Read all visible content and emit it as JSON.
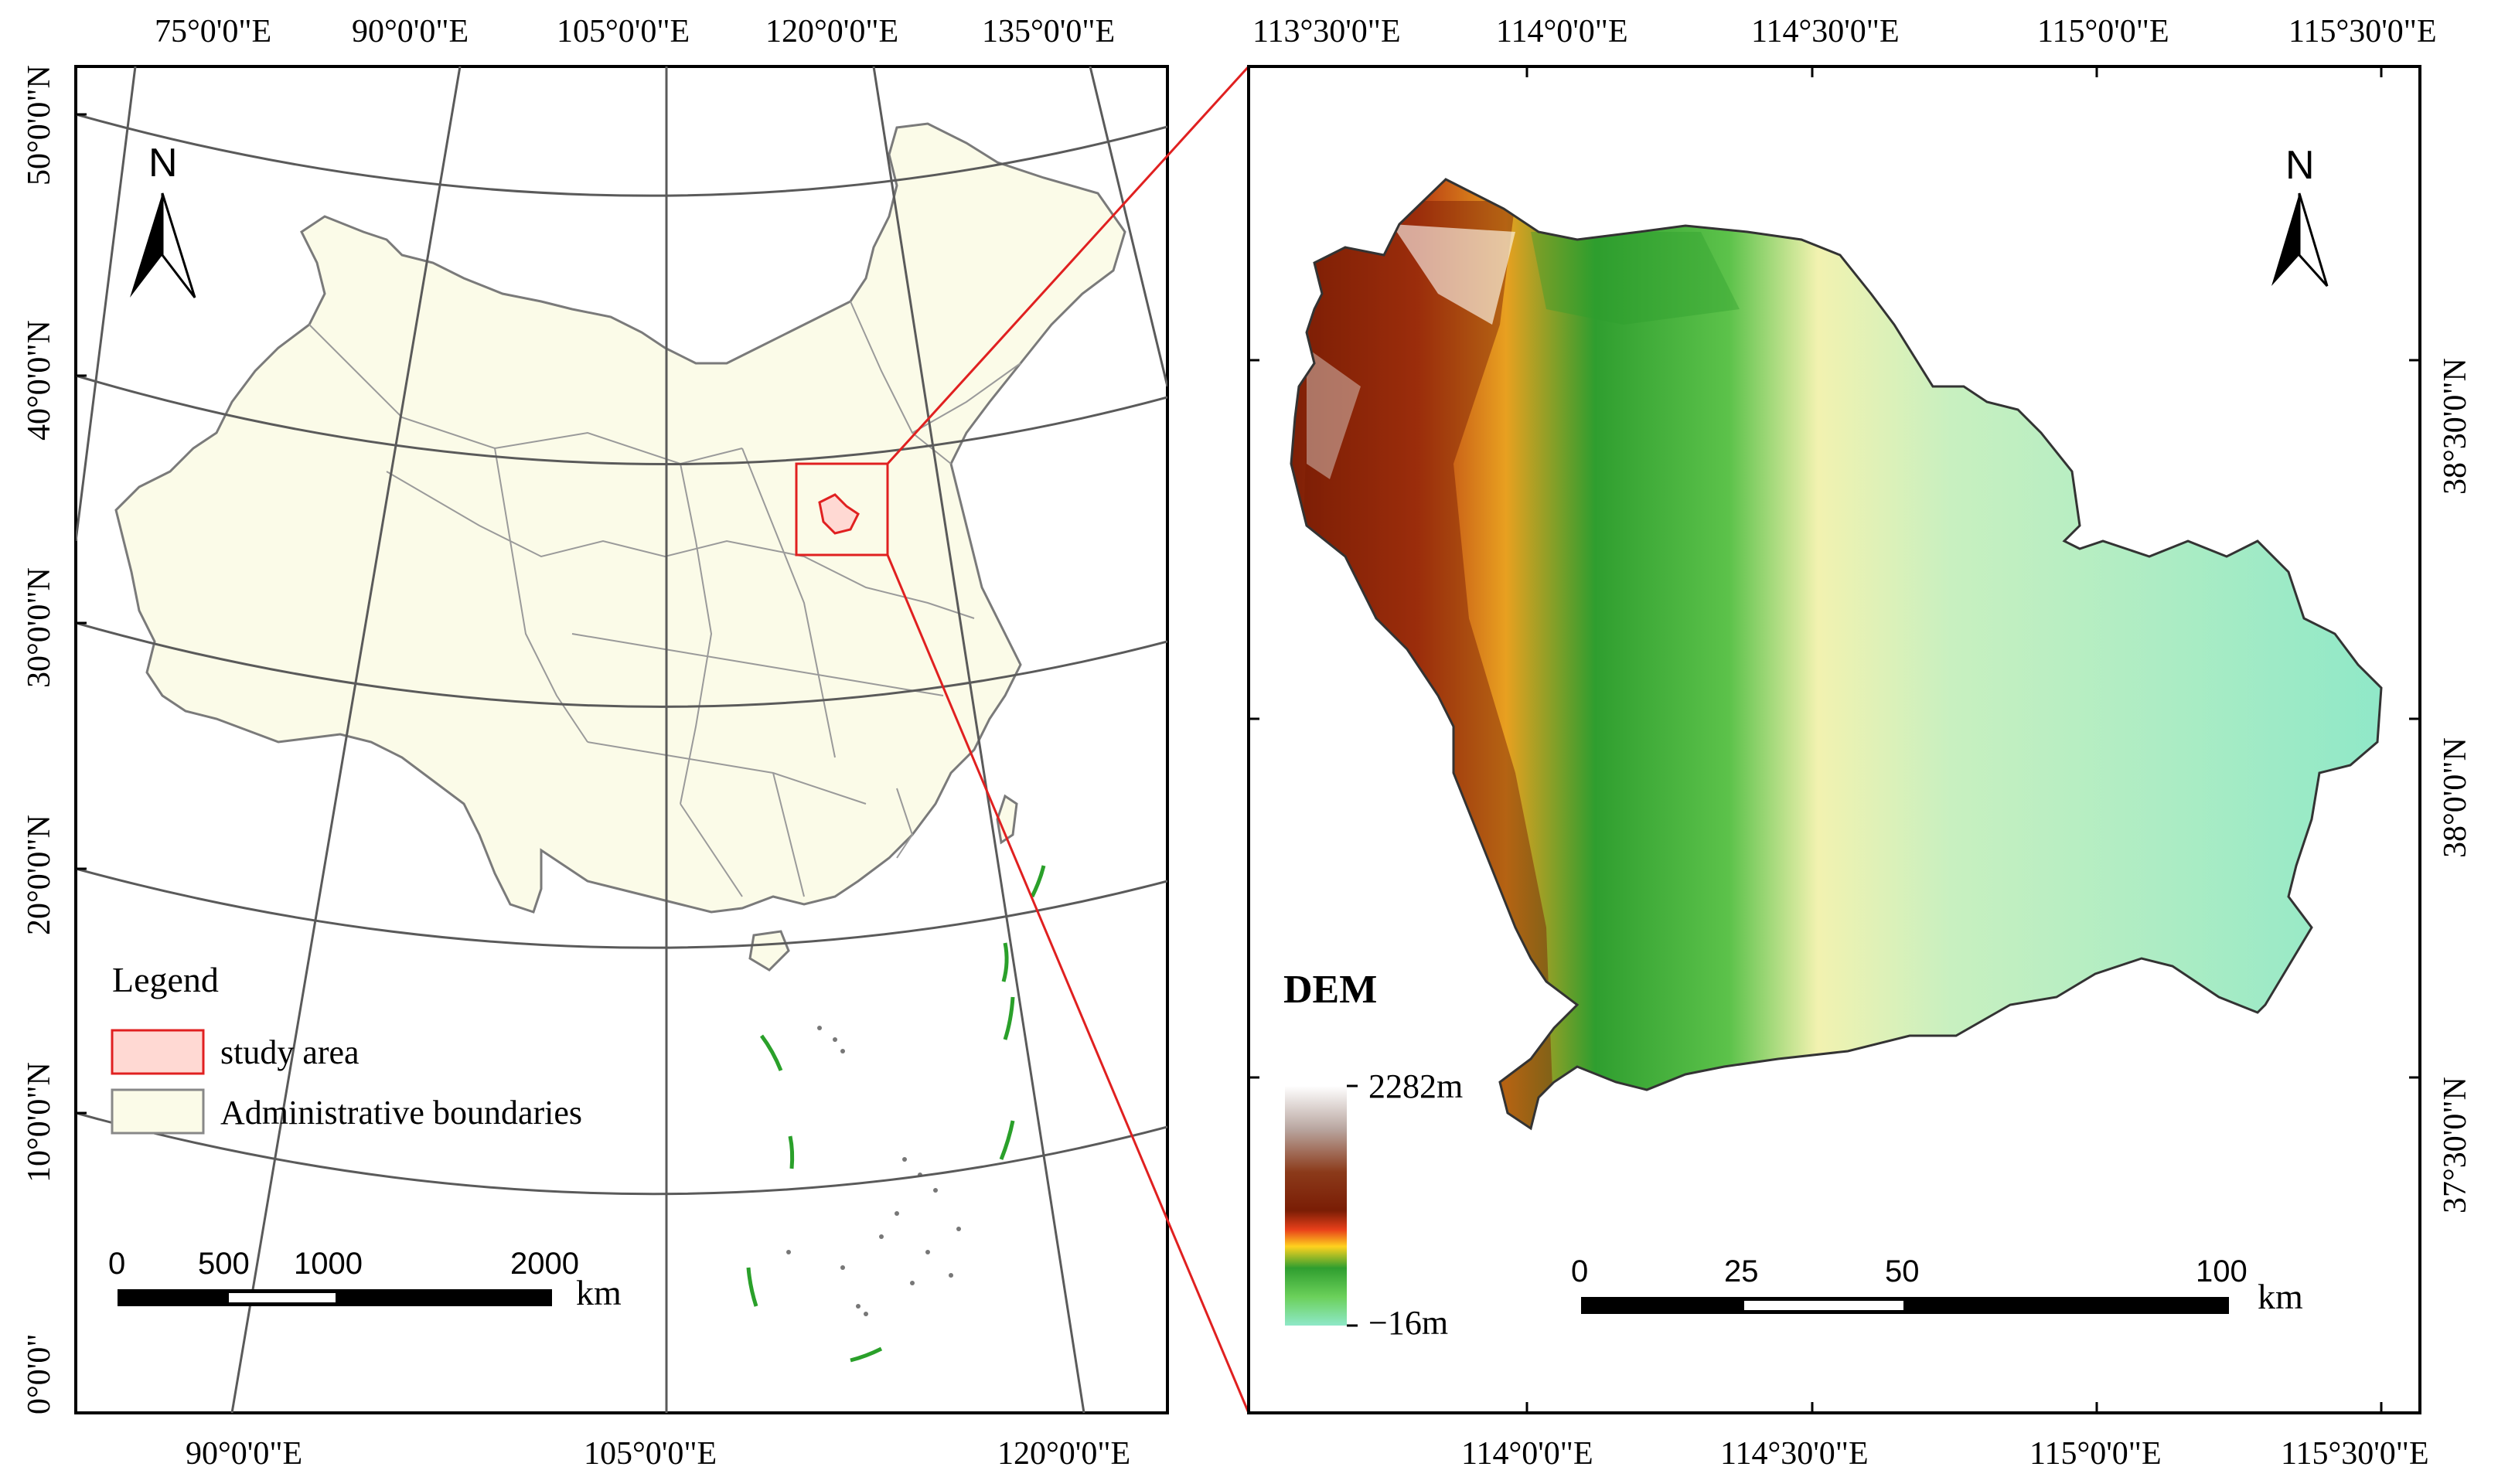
{
  "left_map": {
    "top_labels": [
      "75°0'0\"E",
      "90°0'0\"E",
      "105°0'0\"E",
      "120°0'0\"E",
      "135°0'0\"E"
    ],
    "bottom_labels": [
      "90°0'0\"E",
      "105°0'0\"E",
      "120°0'0\"E"
    ],
    "left_labels": [
      "50°0'0\"N",
      "40°0'0\"N",
      "30°0'0\"N",
      "20°0'0\"N",
      "10°0'0\"N",
      "0°0'0\""
    ],
    "north_label": "N",
    "legend": {
      "title": "Legend",
      "items": [
        {
          "label": "study area",
          "color": "#ffd9d3",
          "border": "#e02020"
        },
        {
          "label": "Administrative boundaries",
          "color": "#fbfbe8",
          "border": "#888888"
        }
      ]
    },
    "scale_bar": {
      "ticks": [
        "0",
        "500",
        "1000",
        "2000"
      ],
      "unit": "km"
    }
  },
  "right_map": {
    "top_labels": [
      "113°30'0\"E",
      "114°0'0\"E",
      "114°30'0\"E",
      "115°0'0\"E",
      "115°30'0\"E"
    ],
    "bottom_labels": [
      "114°0'0\"E",
      "114°30'0\"E",
      "115°0'0\"E",
      "115°30'0\"E"
    ],
    "right_labels": [
      "38°30'0\"N",
      "38°0'0\"N",
      "37°30'0\"N"
    ],
    "north_label": "N",
    "dem_legend": {
      "title": "DEM",
      "max_label": "2282m",
      "min_label": "−16m",
      "colors": [
        "#ffffff",
        "#b9a6a0",
        "#8b3a1a",
        "#7a1d05",
        "#e8401a",
        "#ffd21e",
        "#2f9e2f",
        "#6bd05a",
        "#8ee8c8"
      ]
    },
    "scale_bar": {
      "ticks": [
        "0",
        "25",
        "50",
        "100"
      ],
      "unit": "km"
    }
  },
  "colors": {
    "land": "#fbfbe8",
    "boundary": "#7a7a7a",
    "graticule": "#5a5a5a",
    "highlight": "#e02020",
    "islands": "#2aa02a"
  }
}
